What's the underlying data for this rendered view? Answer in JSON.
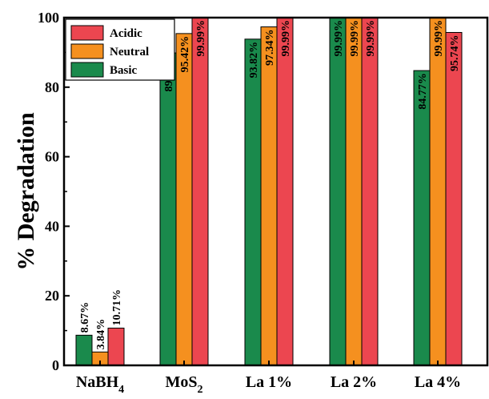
{
  "chart_data": {
    "type": "bar",
    "ylabel": "% Degradation",
    "ylim": [
      0,
      100
    ],
    "yticks": [
      0,
      20,
      40,
      60,
      80,
      100
    ],
    "categories": [
      {
        "main": "NaBH",
        "sub": "4"
      },
      {
        "main": "MoS",
        "sub": "2"
      },
      {
        "main": "La 1%",
        "sub": ""
      },
      {
        "main": "La 2%",
        "sub": ""
      },
      {
        "main": "La 4%",
        "sub": ""
      }
    ],
    "series": [
      {
        "name": "Basic",
        "color": "#1a8a4c",
        "values": [
          8.67,
          89.85,
          93.82,
          99.99,
          84.77
        ],
        "labels": [
          "8.67%",
          "89.85%",
          "93.82%",
          "99.99%",
          "84.77%"
        ]
      },
      {
        "name": "Neutral",
        "color": "#f5901f",
        "values": [
          3.84,
          95.42,
          97.34,
          99.99,
          99.99
        ],
        "labels": [
          "3.84%",
          "95.42%",
          "97.34%",
          "99.99%",
          "99.99%"
        ]
      },
      {
        "name": "Acidic",
        "color": "#ec4650",
        "values": [
          10.71,
          99.99,
          99.99,
          99.99,
          95.74
        ],
        "labels": [
          "10.71%",
          "99.99%",
          "99.99%",
          "99.99%",
          "95.74%"
        ]
      }
    ],
    "legend": {
      "position": "top-left",
      "order": [
        "Acidic",
        "Neutral",
        "Basic"
      ]
    },
    "grid": false
  }
}
